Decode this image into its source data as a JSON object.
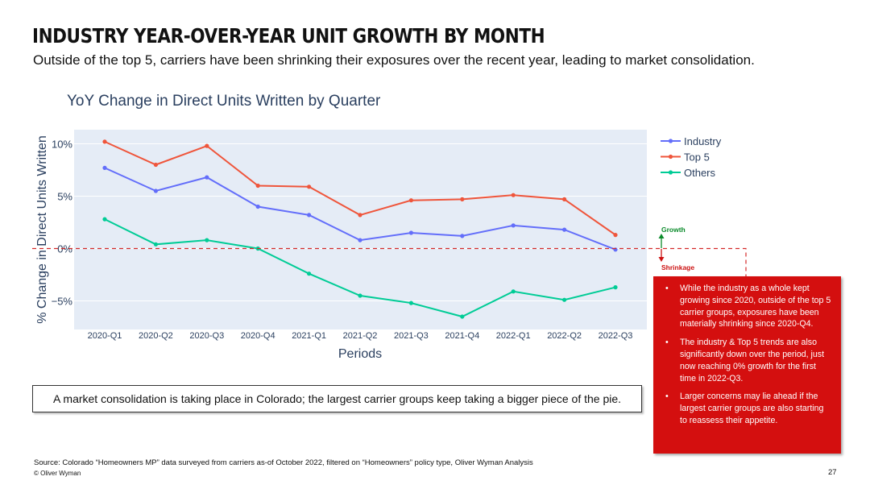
{
  "header": {
    "title": "INDUSTRY YEAR-OVER-YEAR UNIT GROWTH BY MONTH",
    "subtitle": "Outside of the top 5, carriers have been shrinking their exposures over the recent year, leading to market consolidation."
  },
  "chart_data": {
    "type": "line",
    "title": "YoY Change in Direct Units Written by Quarter",
    "xlabel": "Periods",
    "ylabel": "% Change in Direct Units Written",
    "categories": [
      "2020-Q1",
      "2020-Q2",
      "2020-Q3",
      "2020-Q4",
      "2021-Q1",
      "2021-Q2",
      "2021-Q3",
      "2021-Q4",
      "2022-Q1",
      "2022-Q2",
      "2022-Q3"
    ],
    "ylim": [
      -7.7,
      11.3
    ],
    "yticks": [
      10,
      5,
      0,
      -5
    ],
    "ytick_labels": [
      "10%",
      "5%",
      "0%",
      "−5%"
    ],
    "grid": true,
    "legend_position": "top-right",
    "series": [
      {
        "name": "Industry",
        "color": "#636efa",
        "values": [
          7.7,
          5.5,
          6.8,
          4.0,
          3.2,
          0.8,
          1.5,
          1.2,
          2.2,
          1.8,
          -0.1
        ]
      },
      {
        "name": "Top 5",
        "color": "#ef553b",
        "values": [
          10.2,
          8.0,
          9.8,
          6.0,
          5.9,
          3.2,
          4.6,
          4.7,
          5.1,
          4.7,
          1.3
        ]
      },
      {
        "name": "Others",
        "color": "#00cc96",
        "values": [
          2.8,
          0.4,
          0.8,
          0.0,
          -2.4,
          -4.5,
          -5.2,
          -6.5,
          -4.1,
          -4.9,
          -3.7
        ]
      }
    ],
    "annotations": {
      "growth_label": "Growth",
      "shrinkage_label": "Shrinkage",
      "growth_color": "#0a8a2a",
      "shrinkage_color": "#cc1111",
      "zero_line_color": "#d42a2a"
    }
  },
  "callout": {
    "text": "A market consolidation is taking place in Colorado; the largest carrier groups keep taking a bigger piece of the pie."
  },
  "insights": {
    "background_color": "#d40f0f",
    "bullets": [
      "While the industry as a whole kept growing since 2020, outside of the top 5 carrier groups, exposures have been materially shrinking since 2020-Q4.",
      "The industry & Top 5 trends are also significantly down over the period, just now reaching 0% growth for the first time in 2022-Q3.",
      "Larger concerns may lie ahead if the largest carrier groups are also starting to reassess their appetite."
    ]
  },
  "footer": {
    "source": "Source: Colorado “Homeowners MP” data surveyed from carriers as-of October 2022, filtered on “Homeowners” policy type, Oliver Wyman Analysis",
    "copyright": "© Oliver Wyman",
    "page_number": "27"
  }
}
